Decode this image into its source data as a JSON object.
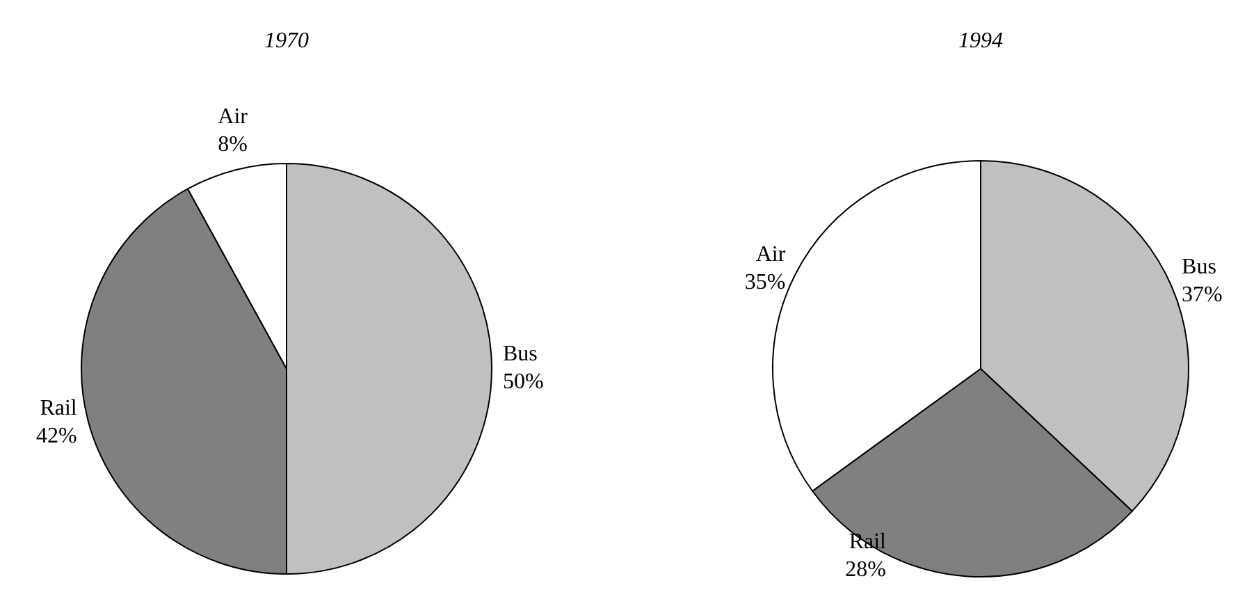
{
  "chart_data": [
    {
      "type": "pie",
      "title": "1970",
      "categories": [
        "Bus",
        "Rail",
        "Air"
      ],
      "values": [
        50,
        42,
        8
      ],
      "value_labels": [
        "50%",
        "42%",
        "8%"
      ],
      "colors": [
        "#c0c0c0",
        "#808080",
        "#ffffff"
      ],
      "legend": false
    },
    {
      "type": "pie",
      "title": "1994",
      "categories": [
        "Bus",
        "Rail",
        "Air"
      ],
      "values": [
        37,
        28,
        35
      ],
      "value_labels": [
        "37%",
        "28%",
        "35%"
      ],
      "colors": [
        "#c0c0c0",
        "#808080",
        "#ffffff"
      ],
      "legend": false
    }
  ]
}
